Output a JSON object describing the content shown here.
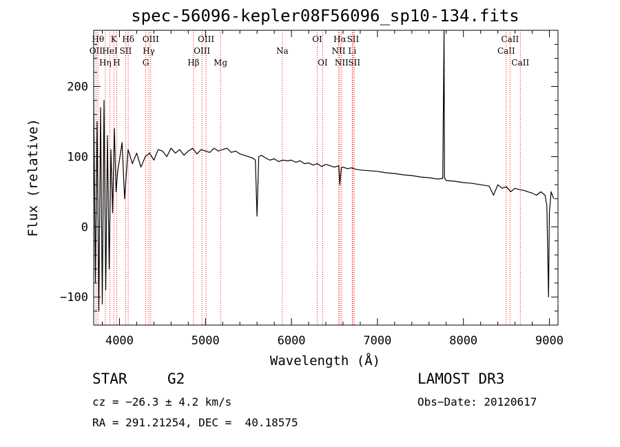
{
  "chart_data": {
    "type": "line",
    "title": "spec-56096-kepler08F56096_sp10-134.fits",
    "xlabel": "Wavelength (Å)",
    "ylabel": "Flux (relative)",
    "xlim": [
      3700,
      9100
    ],
    "ylim": [
      -140,
      280
    ],
    "xticks": [
      4000,
      5000,
      6000,
      7000,
      8000,
      9000
    ],
    "xtick_labels": [
      "4000",
      "5000",
      "6000",
      "7000",
      "8000",
      "9000"
    ],
    "yticks": [
      -100,
      0,
      100,
      200
    ],
    "ytick_labels": [
      "−100",
      "0",
      "100",
      "200"
    ],
    "grid": false,
    "line_color": "#ff0000",
    "series": [
      {
        "name": "spectrum",
        "x": [
          3700,
          3720,
          3740,
          3760,
          3780,
          3800,
          3820,
          3840,
          3860,
          3880,
          3900,
          3920,
          3940,
          3960,
          3980,
          4000,
          4030,
          4060,
          4100,
          4150,
          4200,
          4250,
          4300,
          4350,
          4400,
          4450,
          4500,
          4550,
          4600,
          4650,
          4700,
          4750,
          4800,
          4850,
          4900,
          4950,
          5000,
          5050,
          5100,
          5150,
          5200,
          5250,
          5300,
          5350,
          5400,
          5450,
          5500,
          5550,
          5580,
          5600,
          5620,
          5650,
          5700,
          5750,
          5800,
          5850,
          5900,
          5950,
          6000,
          6050,
          6100,
          6150,
          6200,
          6250,
          6300,
          6350,
          6400,
          6450,
          6500,
          6550,
          6563,
          6580,
          6600,
          6650,
          6700,
          6750,
          6800,
          6900,
          7000,
          7100,
          7200,
          7300,
          7400,
          7500,
          7600,
          7700,
          7760,
          7775,
          7780,
          7790,
          7800,
          7900,
          8000,
          8100,
          8200,
          8300,
          8350,
          8400,
          8450,
          8500,
          8550,
          8600,
          8650,
          8700,
          8750,
          8800,
          8850,
          8900,
          8950,
          8970,
          8990,
          9000,
          9020,
          9050
        ],
        "y": [
          180,
          -80,
          150,
          -120,
          170,
          -110,
          180,
          -90,
          130,
          -60,
          110,
          20,
          140,
          50,
          80,
          95,
          120,
          40,
          110,
          90,
          105,
          85,
          100,
          105,
          95,
          110,
          108,
          100,
          112,
          105,
          110,
          102,
          108,
          112,
          104,
          110,
          108,
          106,
          112,
          108,
          110,
          112,
          106,
          108,
          104,
          102,
          100,
          98,
          95,
          15,
          100,
          102,
          98,
          95,
          97,
          93,
          95,
          94,
          95,
          92,
          94,
          90,
          91,
          88,
          90,
          86,
          89,
          87,
          85,
          87,
          60,
          84,
          85,
          83,
          84,
          82,
          81,
          80,
          79,
          77,
          76,
          74,
          73,
          71,
          70,
          68,
          69,
          280,
          70,
          68,
          66,
          65,
          63,
          62,
          60,
          58,
          45,
          60,
          55,
          57,
          50,
          55,
          53,
          52,
          50,
          48,
          45,
          50,
          45,
          30,
          -100,
          20,
          50,
          40
        ]
      }
    ],
    "lines": [
      {
        "name": "OII",
        "wl": 3727,
        "row": 2
      },
      {
        "name": "Hθ",
        "wl": 3750,
        "row": 1
      },
      {
        "name": "Hη",
        "wl": 3835,
        "row": 3
      },
      {
        "name": "HeI",
        "wl": 3889,
        "row": 2
      },
      {
        "name": "K",
        "wl": 3934,
        "row": 1
      },
      {
        "name": "H",
        "wl": 3968,
        "row": 3
      },
      {
        "name": "SII",
        "wl": 4072,
        "row": 2
      },
      {
        "name": "Hδ",
        "wl": 4102,
        "row": 1
      },
      {
        "name": "G",
        "wl": 4305,
        "row": 3
      },
      {
        "name": "Hγ",
        "wl": 4341,
        "row": 2
      },
      {
        "name": "OIII",
        "wl": 4363,
        "row": 1
      },
      {
        "name": "Hβ",
        "wl": 4861,
        "row": 3
      },
      {
        "name": "OIII",
        "wl": 4959,
        "row": 2
      },
      {
        "name": "OIII",
        "wl": 5007,
        "row": 1
      },
      {
        "name": "Mg",
        "wl": 5175,
        "row": 3
      },
      {
        "name": "Na",
        "wl": 5894,
        "row": 2
      },
      {
        "name": "OI",
        "wl": 6300,
        "row": 1
      },
      {
        "name": "OI",
        "wl": 6363,
        "row": 3
      },
      {
        "name": "NII",
        "wl": 6548,
        "row": 2
      },
      {
        "name": "Hα",
        "wl": 6563,
        "row": 1
      },
      {
        "name": "NII",
        "wl": 6583,
        "row": 3
      },
      {
        "name": "Li",
        "wl": 6707,
        "row": 2
      },
      {
        "name": "SII",
        "wl": 6716,
        "row": 1
      },
      {
        "name": "SII",
        "wl": 6731,
        "row": 3
      },
      {
        "name": "CaII",
        "wl": 8498,
        "row": 2
      },
      {
        "name": "CaII",
        "wl": 8542,
        "row": 1
      },
      {
        "name": "CaII",
        "wl": 8662,
        "row": 3
      }
    ]
  },
  "info": {
    "object_class": "STAR",
    "subclass": "G2",
    "survey": "LAMOST DR3",
    "cz": "cz = −26.3 ± 4.2 km/s",
    "obs_date": "Obs−Date: 20120617",
    "coords": "RA = 291.21254, DEC =  40.18575"
  }
}
